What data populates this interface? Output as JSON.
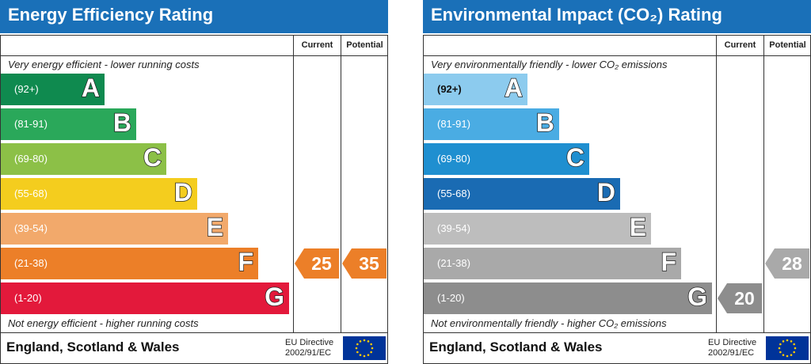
{
  "panels": [
    {
      "title": "Energy Efficiency Rating",
      "col_current": "Current",
      "col_potential": "Potential",
      "top_note": "Very energy efficient - lower running costs",
      "bottom_note": "Not energy efficient - higher running costs",
      "footer": "England, Scotland & Wales",
      "eu_line1": "EU Directive",
      "eu_line2": "2002/91/EC"
    },
    {
      "title": "Environmental Impact (CO₂) Rating",
      "col_current": "Current",
      "col_potential": "Potential",
      "top_note": "Very environmentally friendly - lower CO₂ emissions",
      "bottom_note": "Not environmentally friendly - higher CO₂ emissions",
      "footer": "England, Scotland & Wales",
      "eu_line1": "EU Directive",
      "eu_line2": "2002/91/EC"
    }
  ],
  "chart_data": [
    {
      "type": "bar",
      "title": "Energy Efficiency Rating",
      "categories": [
        "A",
        "B",
        "C",
        "D",
        "E",
        "F",
        "G"
      ],
      "ranges": [
        "(92+)",
        "(81-91)",
        "(69-80)",
        "(55-68)",
        "(39-54)",
        "(21-38)",
        "(1-20)"
      ],
      "colors": [
        "#0f8a4f",
        "#2aa85a",
        "#8cc047",
        "#f4cd1e",
        "#f2a96b",
        "#ec7f28",
        "#e3193b"
      ],
      "current": 25,
      "current_band": "F",
      "current_color": "#ec7f28",
      "potential": 35,
      "potential_band": "F",
      "potential_color": "#ec7f28"
    },
    {
      "type": "bar",
      "title": "Environmental Impact (CO₂) Rating",
      "categories": [
        "A",
        "B",
        "C",
        "D",
        "E",
        "F",
        "G"
      ],
      "ranges": [
        "(92+)",
        "(81-91)",
        "(69-80)",
        "(55-68)",
        "(39-54)",
        "(21-38)",
        "(1-20)"
      ],
      "colors": [
        "#8ccbee",
        "#4aace3",
        "#1f8fd0",
        "#1a6bb3",
        "#bdbdbd",
        "#a9a9a9",
        "#8d8d8d"
      ],
      "current": 20,
      "current_band": "G",
      "current_color": "#8d8d8d",
      "potential": 28,
      "potential_band": "F",
      "potential_color": "#a9a9a9"
    }
  ]
}
